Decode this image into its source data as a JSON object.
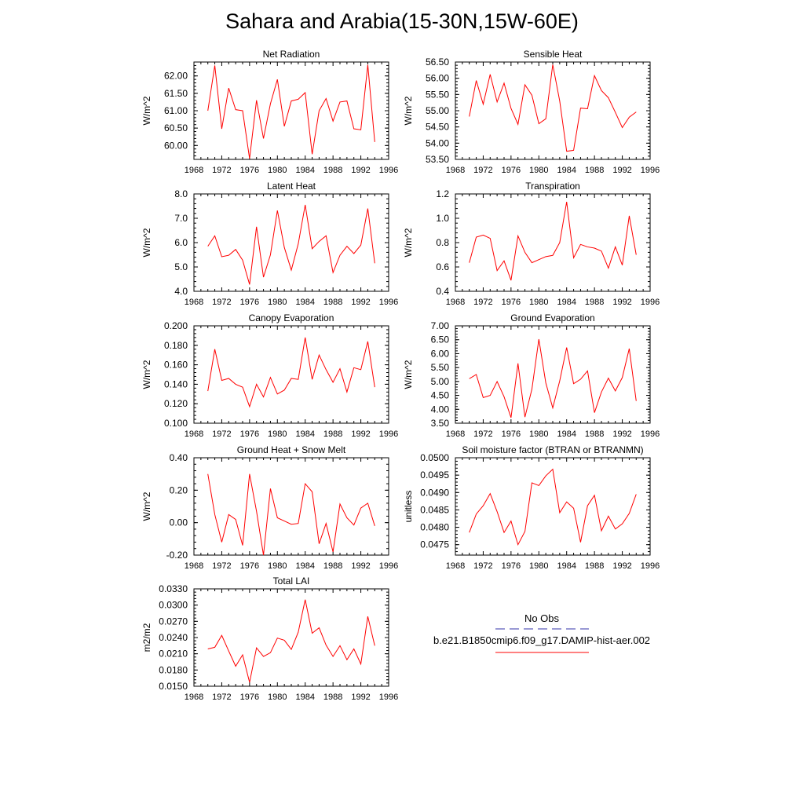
{
  "title": "Sahara and Arabia(15-30N,15W-60E)",
  "chart_data": [
    {
      "type": "line",
      "title": "Net Radiation",
      "ylabel": "W/m^2",
      "xlim": [
        1968,
        1996
      ],
      "ylim": [
        59.6,
        62.4
      ],
      "yticks": [
        60.0,
        60.5,
        61.0,
        61.5,
        62.0
      ],
      "ytick_labels": [
        "60.00",
        "60.50",
        "61.00",
        "61.50",
        "62.00"
      ],
      "xticks": [
        1968,
        1972,
        1976,
        1980,
        1984,
        1988,
        1992,
        1996
      ],
      "xtick_labels": [
        "1968",
        "1972",
        "1976",
        "1980",
        "1984",
        "1988",
        "1992",
        "1996"
      ],
      "series": [
        {
          "color": "#ff0000",
          "x": [
            1970,
            1971,
            1972,
            1973,
            1974,
            1975,
            1976,
            1977,
            1978,
            1979,
            1980,
            1981,
            1982,
            1983,
            1984,
            1985,
            1986,
            1987,
            1988,
            1989,
            1990,
            1991,
            1992,
            1993,
            1994
          ],
          "values": [
            61.0,
            62.3,
            60.48,
            61.65,
            61.03,
            61.0,
            59.62,
            61.3,
            60.2,
            61.2,
            61.9,
            60.55,
            61.28,
            61.33,
            61.52,
            59.75,
            61.0,
            61.35,
            60.7,
            61.25,
            61.28,
            60.48,
            60.45,
            62.32,
            60.1
          ]
        }
      ]
    },
    {
      "type": "line",
      "title": "Sensible Heat",
      "ylabel": "W/m^2",
      "xlim": [
        1968,
        1996
      ],
      "ylim": [
        53.5,
        56.5
      ],
      "yticks": [
        53.5,
        54.0,
        54.5,
        55.0,
        55.5,
        56.0,
        56.5
      ],
      "ytick_labels": [
        "53.50",
        "54.00",
        "54.50",
        "55.00",
        "55.50",
        "56.00",
        "56.50"
      ],
      "xticks": [
        1968,
        1972,
        1976,
        1980,
        1984,
        1988,
        1992,
        1996
      ],
      "xtick_labels": [
        "1968",
        "1972",
        "1976",
        "1980",
        "1984",
        "1988",
        "1992",
        "1996"
      ],
      "series": [
        {
          "color": "#ff0000",
          "x": [
            1970,
            1971,
            1972,
            1973,
            1974,
            1975,
            1976,
            1977,
            1978,
            1979,
            1980,
            1981,
            1982,
            1983,
            1984,
            1985,
            1986,
            1987,
            1988,
            1989,
            1990,
            1991,
            1992,
            1993,
            1994
          ],
          "values": [
            54.82,
            55.93,
            55.2,
            56.12,
            55.27,
            55.85,
            55.07,
            54.58,
            55.8,
            55.48,
            54.6,
            54.75,
            56.42,
            55.3,
            53.75,
            53.78,
            55.08,
            55.06,
            56.08,
            55.62,
            55.4,
            54.95,
            54.48,
            54.8,
            54.96
          ]
        }
      ]
    },
    {
      "type": "line",
      "title": "Latent Heat",
      "ylabel": "W/m^2",
      "xlim": [
        1968,
        1996
      ],
      "ylim": [
        4.0,
        8.0
      ],
      "yticks": [
        4.0,
        5.0,
        6.0,
        7.0,
        8.0
      ],
      "ytick_labels": [
        "4.0",
        "5.0",
        "6.0",
        "7.0",
        "8.0"
      ],
      "xticks": [
        1968,
        1972,
        1976,
        1980,
        1984,
        1988,
        1992,
        1996
      ],
      "xtick_labels": [
        "1968",
        "1972",
        "1976",
        "1980",
        "1984",
        "1988",
        "1992",
        "1996"
      ],
      "series": [
        {
          "color": "#ff0000",
          "x": [
            1970,
            1971,
            1972,
            1973,
            1974,
            1975,
            1976,
            1977,
            1978,
            1979,
            1980,
            1981,
            1982,
            1983,
            1984,
            1985,
            1986,
            1987,
            1988,
            1989,
            1990,
            1991,
            1992,
            1993,
            1994
          ],
          "values": [
            5.85,
            6.28,
            5.42,
            5.48,
            5.72,
            5.28,
            4.28,
            6.65,
            4.58,
            5.5,
            7.32,
            5.8,
            4.87,
            5.95,
            7.55,
            5.75,
            6.05,
            6.28,
            4.77,
            5.48,
            5.85,
            5.55,
            5.9,
            7.4,
            5.15
          ]
        }
      ]
    },
    {
      "type": "line",
      "title": "Transpiration",
      "ylabel": "W/m^2",
      "xlim": [
        1968,
        1996
      ],
      "ylim": [
        0.4,
        1.2
      ],
      "yticks": [
        0.4,
        0.6,
        0.8,
        1.0,
        1.2
      ],
      "ytick_labels": [
        "0.4",
        "0.6",
        "0.8",
        "1.0",
        "1.2"
      ],
      "xticks": [
        1968,
        1972,
        1976,
        1980,
        1984,
        1988,
        1992,
        1996
      ],
      "xtick_labels": [
        "1968",
        "1972",
        "1976",
        "1980",
        "1984",
        "1988",
        "1992",
        "1996"
      ],
      "series": [
        {
          "color": "#ff0000",
          "x": [
            1970,
            1971,
            1972,
            1973,
            1974,
            1975,
            1976,
            1977,
            1978,
            1979,
            1980,
            1981,
            1982,
            1983,
            1984,
            1985,
            1986,
            1987,
            1988,
            1989,
            1990,
            1991,
            1992,
            1993,
            1994
          ],
          "values": [
            0.635,
            0.845,
            0.862,
            0.835,
            0.57,
            0.65,
            0.49,
            0.855,
            0.72,
            0.635,
            0.66,
            0.685,
            0.695,
            0.8,
            1.135,
            0.675,
            0.785,
            0.765,
            0.755,
            0.73,
            0.59,
            0.765,
            0.615,
            1.02,
            0.7
          ]
        }
      ]
    },
    {
      "type": "line",
      "title": "Canopy Evaporation",
      "ylabel": "W/m^2",
      "xlim": [
        1968,
        1996
      ],
      "ylim": [
        0.1,
        0.2
      ],
      "yticks": [
        0.1,
        0.12,
        0.14,
        0.16,
        0.18,
        0.2
      ],
      "ytick_labels": [
        "0.100",
        "0.120",
        "0.140",
        "0.160",
        "0.180",
        "0.200"
      ],
      "xticks": [
        1968,
        1972,
        1976,
        1980,
        1984,
        1988,
        1992,
        1996
      ],
      "xtick_labels": [
        "1968",
        "1972",
        "1976",
        "1980",
        "1984",
        "1988",
        "1992",
        "1996"
      ],
      "series": [
        {
          "color": "#ff0000",
          "x": [
            1970,
            1971,
            1972,
            1973,
            1974,
            1975,
            1976,
            1977,
            1978,
            1979,
            1980,
            1981,
            1982,
            1983,
            1984,
            1985,
            1986,
            1987,
            1988,
            1989,
            1990,
            1991,
            1992,
            1993,
            1994
          ],
          "values": [
            0.133,
            0.176,
            0.144,
            0.146,
            0.14,
            0.137,
            0.117,
            0.14,
            0.127,
            0.147,
            0.13,
            0.134,
            0.146,
            0.145,
            0.188,
            0.145,
            0.17,
            0.155,
            0.142,
            0.156,
            0.132,
            0.157,
            0.155,
            0.184,
            0.137
          ]
        }
      ]
    },
    {
      "type": "line",
      "title": "Ground Evaporation",
      "ylabel": "W/m^2",
      "xlim": [
        1968,
        1996
      ],
      "ylim": [
        3.5,
        7.0
      ],
      "yticks": [
        3.5,
        4.0,
        4.5,
        5.0,
        5.5,
        6.0,
        6.5,
        7.0
      ],
      "ytick_labels": [
        "3.50",
        "4.00",
        "4.50",
        "5.00",
        "5.50",
        "6.00",
        "6.50",
        "7.00"
      ],
      "xticks": [
        1968,
        1972,
        1976,
        1980,
        1984,
        1988,
        1992,
        1996
      ],
      "xtick_labels": [
        "1968",
        "1972",
        "1976",
        "1980",
        "1984",
        "1988",
        "1992",
        "1996"
      ],
      "series": [
        {
          "color": "#ff0000",
          "x": [
            1970,
            1971,
            1972,
            1973,
            1974,
            1975,
            1976,
            1977,
            1978,
            1979,
            1980,
            1981,
            1982,
            1983,
            1984,
            1985,
            1986,
            1987,
            1988,
            1989,
            1990,
            1991,
            1992,
            1993,
            1994
          ],
          "values": [
            5.1,
            5.25,
            4.42,
            4.5,
            5.0,
            4.45,
            3.7,
            5.65,
            3.72,
            4.72,
            6.52,
            4.95,
            4.05,
            5.02,
            6.22,
            4.92,
            5.08,
            5.38,
            3.88,
            4.62,
            5.12,
            4.66,
            5.14,
            6.18,
            4.3
          ]
        }
      ]
    },
    {
      "type": "line",
      "title": "Ground Heat + Snow Melt",
      "ylabel": "W/m^2",
      "xlim": [
        1968,
        1996
      ],
      "ylim": [
        -0.2,
        0.4
      ],
      "yticks": [
        -0.2,
        0.0,
        0.2,
        0.4
      ],
      "ytick_labels": [
        "-0.20",
        "0.00",
        "0.20",
        "0.40"
      ],
      "xticks": [
        1968,
        1972,
        1976,
        1980,
        1984,
        1988,
        1992,
        1996
      ],
      "xtick_labels": [
        "1968",
        "1972",
        "1976",
        "1980",
        "1984",
        "1988",
        "1992",
        "1996"
      ],
      "series": [
        {
          "color": "#ff0000",
          "x": [
            1970,
            1971,
            1972,
            1973,
            1974,
            1975,
            1976,
            1977,
            1978,
            1979,
            1980,
            1981,
            1982,
            1983,
            1984,
            1985,
            1986,
            1987,
            1988,
            1989,
            1990,
            1991,
            1992,
            1993,
            1994
          ],
          "values": [
            0.3,
            0.05,
            -0.12,
            0.05,
            0.02,
            -0.14,
            0.3,
            0.07,
            -0.2,
            0.21,
            0.03,
            0.01,
            -0.01,
            -0.005,
            0.24,
            0.19,
            -0.13,
            -0.005,
            -0.18,
            0.115,
            0.03,
            -0.015,
            0.09,
            0.12,
            -0.02
          ]
        }
      ]
    },
    {
      "type": "line",
      "title": "Soil moisture factor (BTRAN or BTRANMN)",
      "ylabel": "unitless",
      "xlim": [
        1968,
        1996
      ],
      "ylim": [
        0.0472,
        0.05
      ],
      "yticks": [
        0.0475,
        0.048,
        0.0485,
        0.049,
        0.0495,
        0.05
      ],
      "ytick_labels": [
        "0.0475",
        "0.0480",
        "0.0485",
        "0.0490",
        "0.0495",
        "0.0500"
      ],
      "xticks": [
        1968,
        1972,
        1976,
        1980,
        1984,
        1988,
        1992,
        1996
      ],
      "xtick_labels": [
        "1968",
        "1972",
        "1976",
        "1980",
        "1984",
        "1988",
        "1992",
        "1996"
      ],
      "series": [
        {
          "color": "#ff0000",
          "x": [
            1970,
            1971,
            1972,
            1973,
            1974,
            1975,
            1976,
            1977,
            1978,
            1979,
            1980,
            1981,
            1982,
            1983,
            1984,
            1985,
            1986,
            1987,
            1988,
            1989,
            1990,
            1991,
            1992,
            1993,
            1994
          ],
          "values": [
            0.04785,
            0.04838,
            0.04862,
            0.04897,
            0.04845,
            0.04785,
            0.04818,
            0.0475,
            0.04788,
            0.04928,
            0.0492,
            0.04948,
            0.04967,
            0.04842,
            0.04873,
            0.04855,
            0.04757,
            0.04862,
            0.04892,
            0.0479,
            0.04832,
            0.04795,
            0.0481,
            0.0484,
            0.04895
          ]
        }
      ]
    },
    {
      "type": "line",
      "title": "Total LAI",
      "ylabel": "m2/m2",
      "xlim": [
        1968,
        1996
      ],
      "ylim": [
        0.015,
        0.033
      ],
      "yticks": [
        0.015,
        0.018,
        0.021,
        0.024,
        0.027,
        0.03,
        0.033
      ],
      "ytick_labels": [
        "0.0150",
        "0.0180",
        "0.0210",
        "0.0240",
        "0.0270",
        "0.0300",
        "0.0330"
      ],
      "xticks": [
        1968,
        1972,
        1976,
        1980,
        1984,
        1988,
        1992,
        1996
      ],
      "xtick_labels": [
        "1968",
        "1972",
        "1976",
        "1980",
        "1984",
        "1988",
        "1992",
        "1996"
      ],
      "series": [
        {
          "color": "#ff0000",
          "x": [
            1970,
            1971,
            1972,
            1973,
            1974,
            1975,
            1976,
            1977,
            1978,
            1979,
            1980,
            1981,
            1982,
            1983,
            1984,
            1985,
            1986,
            1987,
            1988,
            1989,
            1990,
            1991,
            1992,
            1993,
            1994
          ],
          "values": [
            0.0219,
            0.0222,
            0.0244,
            0.0215,
            0.0187,
            0.0208,
            0.0157,
            0.0221,
            0.0205,
            0.0212,
            0.0239,
            0.0235,
            0.0218,
            0.025,
            0.031,
            0.0248,
            0.0258,
            0.0226,
            0.0205,
            0.0225,
            0.0199,
            0.0219,
            0.0191,
            0.0279,
            0.0225
          ]
        }
      ]
    }
  ],
  "legend": {
    "entries": [
      {
        "label": "No Obs",
        "color": "#3333aa",
        "dash": "dashed"
      },
      {
        "label": "b.e21.B1850cmip6.f09_g17.DAMIP-hist-aer.002",
        "color": "#ff0000",
        "dash": "solid"
      }
    ]
  }
}
